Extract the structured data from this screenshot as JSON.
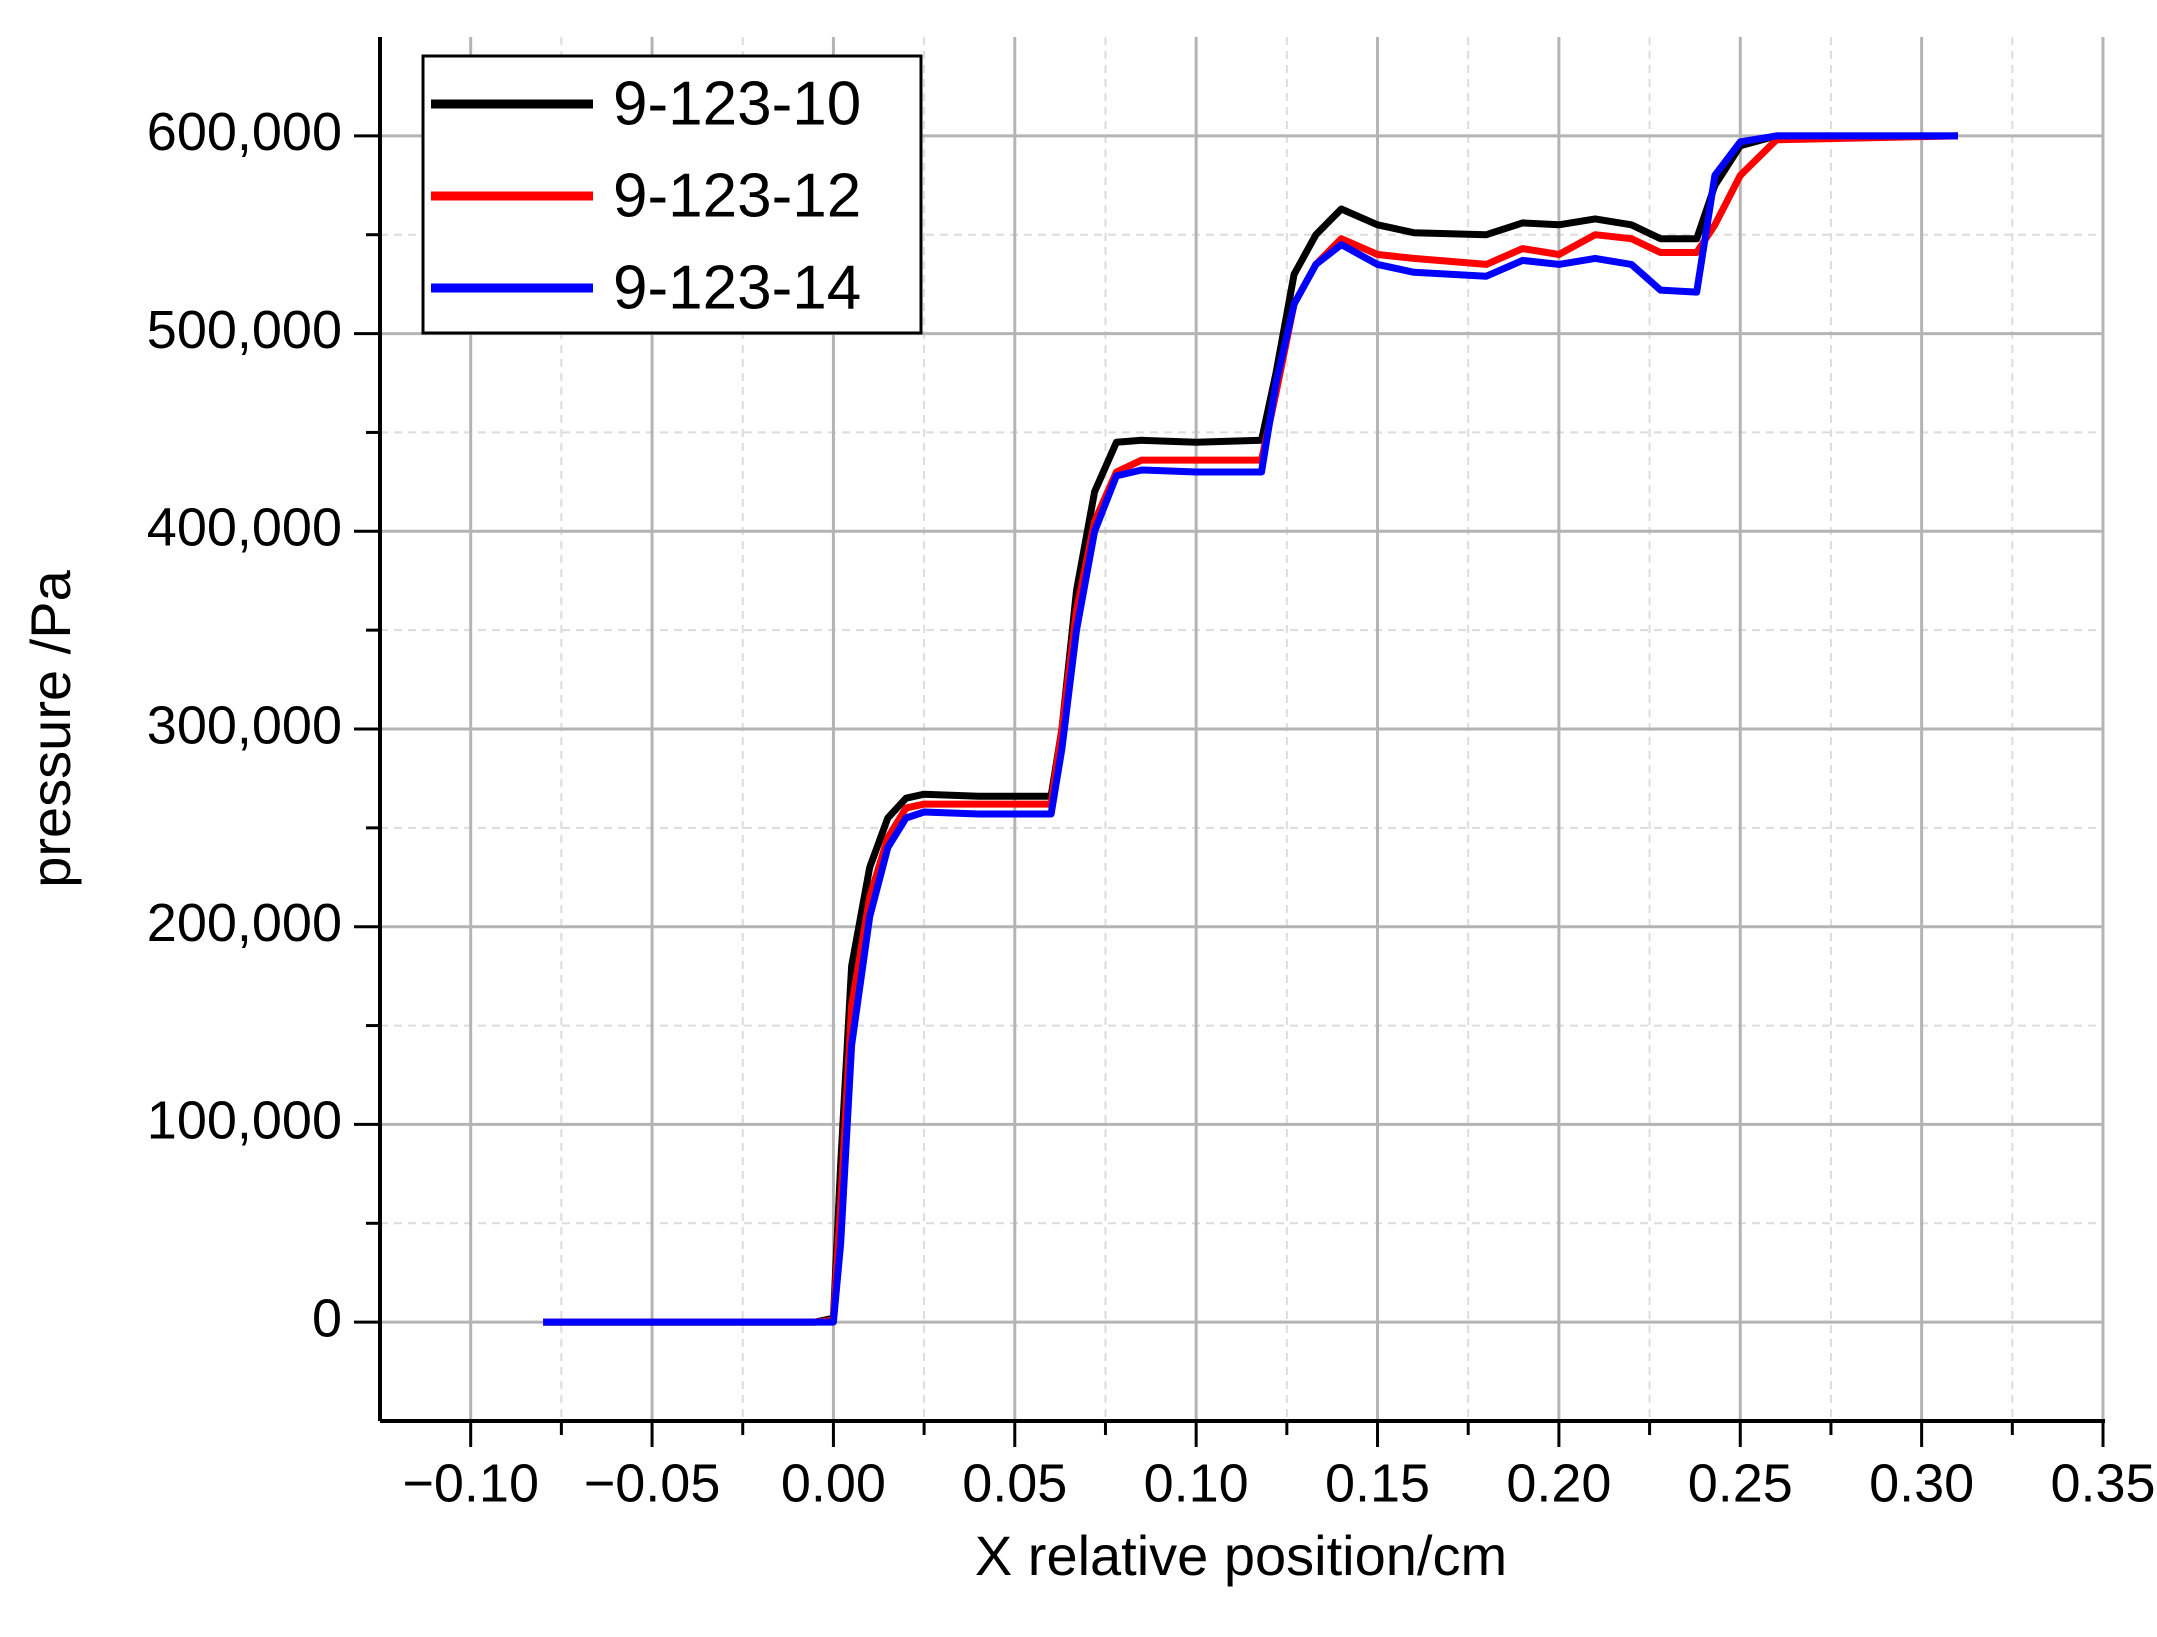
{
  "chart_data": {
    "type": "line",
    "x_label": "X relative position/cm",
    "y_label": "pressure /Pa",
    "x": [
      -0.08,
      -0.005,
      0.0,
      0.002,
      0.005,
      0.01,
      0.015,
      0.02,
      0.025,
      0.04,
      0.06,
      0.063,
      0.067,
      0.072,
      0.078,
      0.085,
      0.1,
      0.118,
      0.122,
      0.127,
      0.133,
      0.14,
      0.15,
      0.16,
      0.18,
      0.19,
      0.2,
      0.21,
      0.22,
      0.228,
      0.238,
      0.243,
      0.25,
      0.26,
      0.31
    ],
    "series": [
      {
        "name": "9-123-10",
        "color": "#000000",
        "values": [
          0,
          0,
          2000,
          80000,
          180000,
          230000,
          255000,
          265000,
          267000,
          266000,
          266000,
          300000,
          370000,
          420000,
          445000,
          446000,
          445000,
          446000,
          480000,
          530000,
          550000,
          563000,
          555000,
          551000,
          550000,
          556000,
          555000,
          558000,
          555000,
          548000,
          548000,
          575000,
          595000,
          600000,
          600000
        ]
      },
      {
        "name": "9-123-12",
        "color": "#ff0000",
        "values": [
          0,
          0,
          1000,
          60000,
          160000,
          215000,
          245000,
          260000,
          262000,
          262000,
          262000,
          300000,
          360000,
          405000,
          430000,
          436000,
          436000,
          436000,
          470000,
          515000,
          535000,
          548000,
          540000,
          538000,
          535000,
          543000,
          540000,
          550000,
          548000,
          541000,
          541000,
          555000,
          580000,
          598000,
          600000
        ]
      },
      {
        "name": "9-123-14",
        "color": "#0000ff",
        "values": [
          0,
          0,
          0,
          40000,
          140000,
          205000,
          240000,
          255000,
          258000,
          257000,
          257000,
          290000,
          350000,
          400000,
          428000,
          431000,
          430000,
          430000,
          475000,
          515000,
          535000,
          545000,
          535000,
          531000,
          529000,
          537000,
          535000,
          538000,
          535000,
          522000,
          521000,
          580000,
          597000,
          600000,
          600000
        ]
      }
    ],
    "xlim": [
      -0.125,
      0.35
    ],
    "ylim": [
      -50000,
      650000
    ],
    "xticks": [
      {
        "value": -0.1,
        "label": "−0.10"
      },
      {
        "value": -0.05,
        "label": "−0.05"
      },
      {
        "value": 0,
        "label": "0.00"
      },
      {
        "value": 0.05,
        "label": "0.05"
      },
      {
        "value": 0.1,
        "label": "0.10"
      },
      {
        "value": 0.15,
        "label": "0.15"
      },
      {
        "value": 0.2,
        "label": "0.20"
      },
      {
        "value": 0.25,
        "label": "0.25"
      },
      {
        "value": 0.3,
        "label": "0.30"
      },
      {
        "value": 0.35,
        "label": "0.35"
      }
    ],
    "yticks": [
      0,
      {
        "value": 100000,
        "label": "100,000"
      },
      {
        "value": 200000,
        "label": "200,000"
      },
      {
        "value": 300000,
        "label": "300,000"
      },
      {
        "value": 400000,
        "label": "400,000"
      },
      {
        "value": 500000,
        "label": "500,000"
      },
      {
        "value": 600000,
        "label": "600,000"
      }
    ],
    "grid": true,
    "legend": "upper left"
  }
}
